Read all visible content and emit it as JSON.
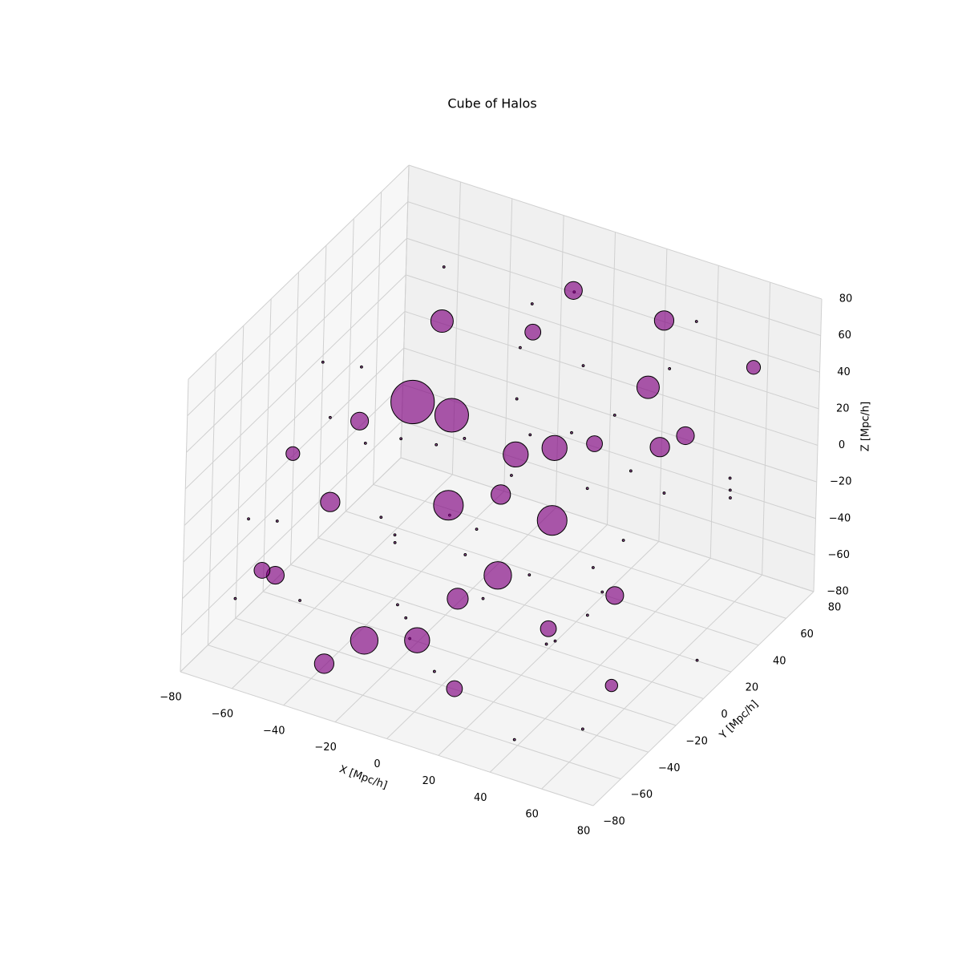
{
  "chart_data": {
    "type": "scatter3d",
    "title": "Cube of Halos",
    "x_label": "X [Mpc/h]",
    "y_label": "Y [Mpc/h]",
    "z_label": "Z [Mpc/h]",
    "color": "#800080",
    "edgecolor": "#000000",
    "grid": true,
    "xlim": [
      -80,
      80
    ],
    "ylim": [
      -80,
      80
    ],
    "zlim": [
      -80,
      80
    ],
    "xticks": [
      {
        "value": -80,
        "label": "−80"
      },
      {
        "value": -60,
        "label": "−60"
      },
      {
        "value": -40,
        "label": "−40"
      },
      {
        "value": -20,
        "label": "−20"
      },
      0,
      20,
      40,
      60,
      80
    ],
    "yticks": [
      {
        "value": -80,
        "label": "−80"
      },
      {
        "value": -60,
        "label": "−60"
      },
      {
        "value": -40,
        "label": "−40"
      },
      {
        "value": -20,
        "label": "−20"
      },
      0,
      20,
      40,
      60,
      80
    ],
    "zticks": [
      {
        "value": -80,
        "label": "−80"
      },
      {
        "value": -60,
        "label": "−60"
      },
      {
        "value": -40,
        "label": "−40"
      },
      {
        "value": -20,
        "label": "−20"
      },
      0,
      20,
      40,
      60,
      80
    ],
    "x": [
      -40,
      -30,
      -20,
      10,
      20,
      -50,
      -55,
      40,
      30,
      60,
      -10,
      -20,
      0,
      40,
      -60,
      -70,
      50,
      30,
      0,
      -10,
      70,
      -60,
      -30,
      10,
      60,
      -45,
      15,
      -5,
      0,
      20,
      -70,
      -65,
      -60,
      -50,
      -40,
      -35,
      -30,
      -25,
      -20,
      -15,
      -10,
      -5,
      0,
      5,
      10,
      15,
      20,
      25,
      30,
      35,
      40,
      45,
      50,
      55,
      60,
      65,
      70,
      75,
      -75,
      -68,
      -58,
      -48,
      -38,
      -28,
      -18,
      -8,
      2,
      12,
      22,
      32,
      42,
      52,
      62,
      72,
      -62,
      -22,
      8,
      28,
      48,
      -12
    ],
    "y": [
      10,
      20,
      0,
      -20,
      0,
      -30,
      0,
      30,
      60,
      20,
      -40,
      -60,
      -30,
      40,
      -50,
      -20,
      -10,
      -20,
      50,
      40,
      50,
      -60,
      -70,
      -50,
      -30,
      40,
      10,
      20,
      0,
      30,
      -60,
      -40,
      10,
      50,
      -70,
      -10,
      30,
      60,
      -50,
      -20,
      70,
      -65,
      10,
      -35,
      45,
      -75,
      20,
      -5,
      65,
      -45,
      0,
      55,
      -60,
      15,
      -20,
      45,
      -70,
      25,
      70,
      30,
      -75,
      15,
      -55,
      75,
      -30,
      35,
      -15,
      60,
      -60,
      5,
      -30,
      70,
      -50,
      10,
      -15,
      5,
      -8,
      38,
      -78,
      -45
    ],
    "z": [
      20,
      10,
      -20,
      -30,
      -10,
      -10,
      10,
      50,
      60,
      40,
      -60,
      -50,
      -40,
      10,
      -40,
      0,
      -30,
      -50,
      70,
      50,
      60,
      -30,
      -60,
      -70,
      -60,
      40,
      20,
      0,
      -5,
      10,
      -50,
      -20,
      30,
      60,
      -30,
      -40,
      -10,
      20,
      10,
      30,
      50,
      -20,
      40,
      -10,
      -30,
      -40,
      60,
      -70,
      30,
      0,
      -40,
      70,
      -20,
      10,
      50,
      -10,
      -50,
      20,
      -60,
      -30,
      10,
      -60,
      60,
      -40,
      -70,
      70,
      -50,
      0,
      30,
      -60,
      70,
      -30,
      20,
      -70,
      50,
      -30,
      15,
      -45,
      -60,
      -45
    ],
    "sizes": [
      1500,
      900,
      700,
      600,
      700,
      300,
      250,
      400,
      300,
      250,
      500,
      600,
      350,
      300,
      250,
      150,
      250,
      200,
      250,
      200,
      150,
      200,
      300,
      200,
      120,
      400,
      500,
      500,
      300,
      200,
      4,
      4,
      4,
      4,
      4,
      4,
      4,
      4,
      4,
      4,
      4,
      4,
      4,
      4,
      4,
      4,
      4,
      4,
      4,
      4,
      4,
      4,
      4,
      4,
      4,
      4,
      4,
      4,
      4,
      4,
      4,
      4,
      4,
      4,
      4,
      4,
      4,
      4,
      4,
      4,
      4,
      4,
      4,
      4,
      4,
      4,
      4,
      4,
      4,
      4
    ]
  }
}
